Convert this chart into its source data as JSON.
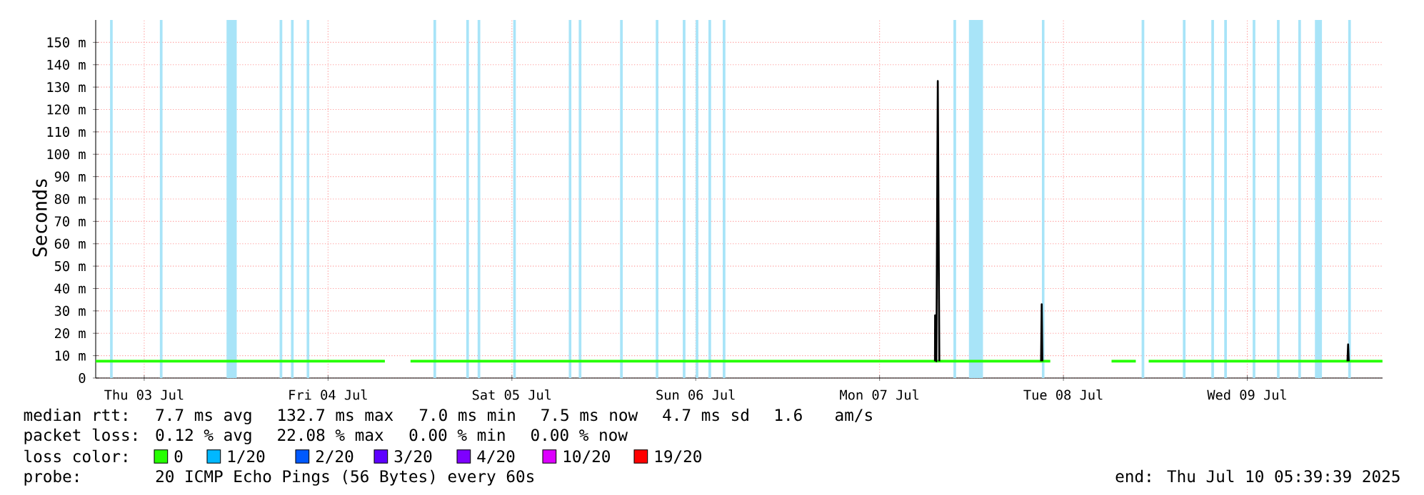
{
  "chart_data": {
    "type": "line",
    "ylabel": "Seconds",
    "xlim": [
      "2025-07-03T05:40",
      "2025-07-10T05:40"
    ],
    "xticks": [
      {
        "value": "2025-07-03T12:00",
        "label": "Thu 03 Jul"
      },
      {
        "value": "2025-07-04T12:00",
        "label": "Fri 04 Jul"
      },
      {
        "value": "2025-07-05T12:00",
        "label": "Sat 05 Jul"
      },
      {
        "value": "2025-07-06T12:00",
        "label": "Sun 06 Jul"
      },
      {
        "value": "2025-07-07T12:00",
        "label": "Mon 07 Jul"
      },
      {
        "value": "2025-07-08T12:00",
        "label": "Tue 08 Jul"
      },
      {
        "value": "2025-07-09T12:00",
        "label": "Wed 09 Jul"
      }
    ],
    "ylim": [
      0,
      160
    ],
    "yticks": [
      0,
      {
        "value": 10,
        "label": "10 m"
      },
      {
        "value": 20,
        "label": "20 m"
      },
      {
        "value": 30,
        "label": "30 m"
      },
      {
        "value": 40,
        "label": "40 m"
      },
      {
        "value": 50,
        "label": "50 m"
      },
      {
        "value": 60,
        "label": "60 m"
      },
      {
        "value": 70,
        "label": "70 m"
      },
      {
        "value": 80,
        "label": "80 m"
      },
      {
        "value": 90,
        "label": "90 m"
      },
      {
        "value": 100,
        "label": "100 m"
      },
      {
        "value": 110,
        "label": "110 m"
      },
      {
        "value": 120,
        "label": "120 m"
      },
      {
        "value": 130,
        "label": "130 m"
      },
      {
        "value": 140,
        "label": "140 m"
      },
      {
        "value": 150,
        "label": "150 m"
      }
    ],
    "grid": true,
    "legend": "bottom",
    "series": [
      {
        "name": "0",
        "color": "#26ff00",
        "x": [
          "2025-07-03T05:40",
          "2025-07-04T19:25",
          "2025-07-04T21:00",
          "2025-07-04T22:46",
          "2025-07-08T10:17",
          "2025-07-08T14:00",
          "2025-07-08T18:17",
          "2025-07-08T21:27",
          "2025-07-08T22:20",
          "2025-07-08T23:08",
          "2025-07-10T05:39"
        ],
        "values": [
          7.5,
          7.5,
          null,
          7.5,
          7.5,
          null,
          7.5,
          7.5,
          null,
          7.5,
          7.5
        ]
      },
      {
        "name": "1/20",
        "color": "#00b8ff"
      },
      {
        "name": "2/20",
        "color": "#0059ff"
      },
      {
        "name": "3/20",
        "color": "#5e00ff"
      },
      {
        "name": "4/20",
        "color": "#7e00ff"
      },
      {
        "name": "10/20",
        "color": "#dd00ff"
      },
      {
        "name": "19/20",
        "color": "#ff0000"
      },
      {
        "color": "#000000",
        "x": [
          "2025-07-07T19:14",
          "2025-07-07T19:15",
          "2025-07-07T19:25",
          "2025-07-07T19:36",
          "2025-07-07T19:48",
          "2025-07-08T02:00",
          "2025-07-08T09:05",
          "2025-07-08T09:10",
          "2025-07-08T09:15",
          "2025-07-09T12:00",
          "2025-07-10T01:05",
          "2025-07-10T01:10",
          "2025-07-10T01:15"
        ],
        "values": [
          7.5,
          28,
          7.5,
          132.7,
          7.5,
          null,
          7.5,
          33,
          7.5,
          null,
          7.5,
          15,
          7.5
        ]
      }
    ],
    "bands": [
      {
        "axis": "x",
        "from": "2025-07-03T22:45",
        "to": "2025-07-04T00:05",
        "color": "#a8e4f8"
      },
      {
        "axis": "x",
        "from": "2025-07-07T23:40",
        "to": "2025-07-08T01:30",
        "color": "#a8e4f8"
      },
      {
        "axis": "x",
        "from": "2025-07-09T20:50",
        "to": "2025-07-09T21:45",
        "color": "#a8e4f8"
      }
    ],
    "ref_lines": [
      {
        "axis": "x",
        "value": "2025-07-03T07:43",
        "color": "#a8e4f8"
      },
      {
        "axis": "x",
        "value": "2025-07-03T14:13",
        "color": "#a8e4f8"
      },
      {
        "axis": "x",
        "value": "2025-07-04T05:51",
        "color": "#a8e4f8"
      },
      {
        "axis": "x",
        "value": "2025-07-04T07:20",
        "color": "#a8e4f8"
      },
      {
        "axis": "x",
        "value": "2025-07-04T09:23",
        "color": "#a8e4f8"
      },
      {
        "axis": "x",
        "value": "2025-07-05T01:56",
        "color": "#a8e4f8"
      },
      {
        "axis": "x",
        "value": "2025-07-05T06:13",
        "color": "#a8e4f8"
      },
      {
        "axis": "x",
        "value": "2025-07-05T07:42",
        "color": "#a8e4f8"
      },
      {
        "axis": "x",
        "value": "2025-07-05T12:21",
        "color": "#a8e4f8"
      },
      {
        "axis": "x",
        "value": "2025-07-05T19:36",
        "color": "#a8e4f8"
      },
      {
        "axis": "x",
        "value": "2025-07-05T20:54",
        "color": "#a8e4f8"
      },
      {
        "axis": "x",
        "value": "2025-07-06T02:18",
        "color": "#a8e4f8"
      },
      {
        "axis": "x",
        "value": "2025-07-06T06:57",
        "color": "#a8e4f8"
      },
      {
        "axis": "x",
        "value": "2025-07-06T10:29",
        "color": "#a8e4f8"
      },
      {
        "axis": "x",
        "value": "2025-07-06T12:10",
        "color": "#a8e4f8"
      },
      {
        "axis": "x",
        "value": "2025-07-06T13:50",
        "color": "#a8e4f8"
      },
      {
        "axis": "x",
        "value": "2025-07-06T15:42",
        "color": "#a8e4f8"
      },
      {
        "axis": "x",
        "value": "2025-07-07T21:49",
        "color": "#a8e4f8"
      },
      {
        "axis": "x",
        "value": "2025-07-08T09:21",
        "color": "#a8e4f8"
      },
      {
        "axis": "x",
        "value": "2025-07-08T22:23",
        "color": "#a8e4f8"
      },
      {
        "axis": "x",
        "value": "2025-07-09T03:46",
        "color": "#a8e4f8"
      },
      {
        "axis": "x",
        "value": "2025-07-09T07:29",
        "color": "#a8e4f8"
      },
      {
        "axis": "x",
        "value": "2025-07-09T09:10",
        "color": "#a8e4f8"
      },
      {
        "axis": "x",
        "value": "2025-07-09T12:53",
        "color": "#a8e4f8"
      },
      {
        "axis": "x",
        "value": "2025-07-09T16:03",
        "color": "#a8e4f8"
      },
      {
        "axis": "x",
        "value": "2025-07-09T18:50",
        "color": "#a8e4f8"
      },
      {
        "axis": "x",
        "value": "2025-07-10T01:21",
        "color": "#a8e4f8"
      }
    ],
    "annotations": [
      "median rtt:",
      "7.7 ms avg",
      "132.7 ms max",
      "7.0 ms min",
      "7.5 ms now",
      "4.7 ms sd",
      "1.6",
      "am/s",
      "packet loss:",
      "0.12 % avg",
      "22.08 % max",
      "0.00 % min",
      "0.00 % now",
      "loss color:",
      "probe:",
      "20 ICMP Echo Pings (56 Bytes) every 60s",
      "end: Thu Jul 10 05:39:39 2025"
    ]
  }
}
